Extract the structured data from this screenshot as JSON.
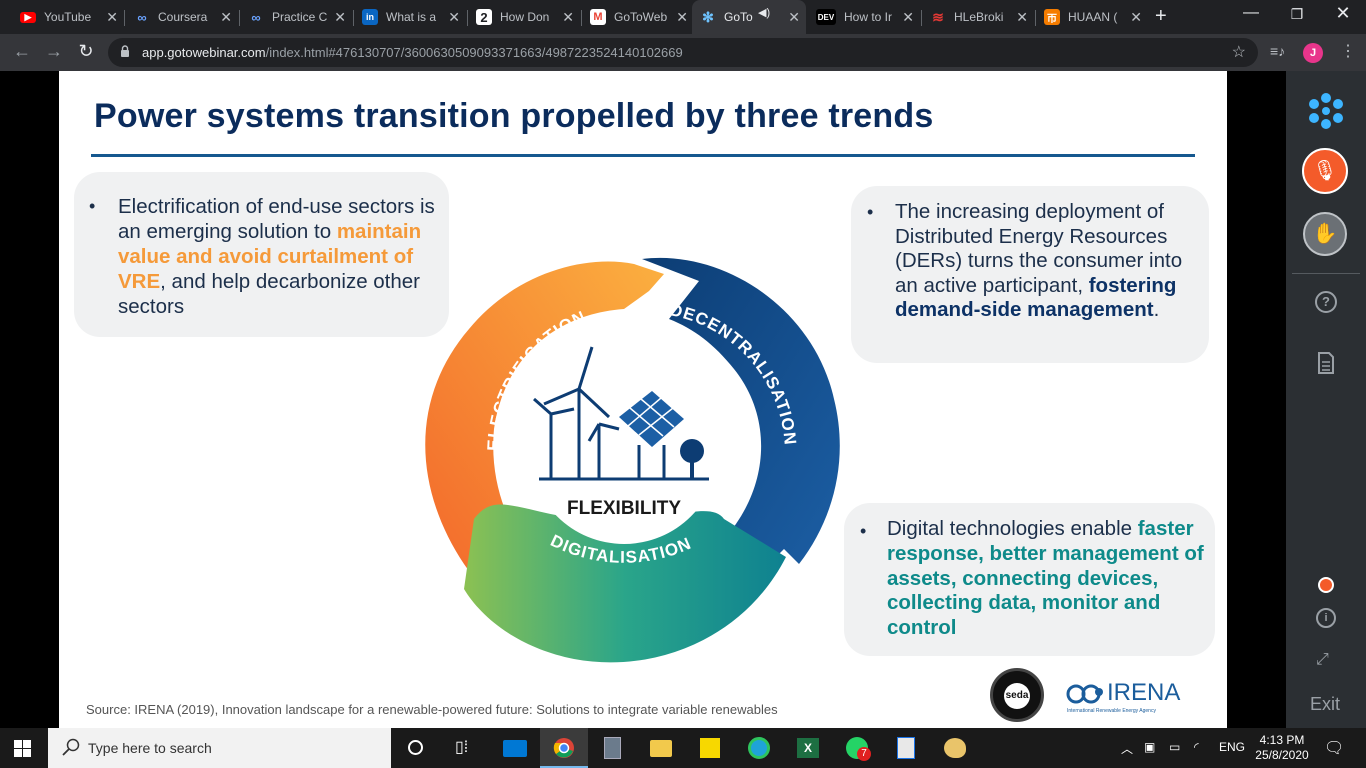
{
  "browser": {
    "tabs": [
      {
        "label": "YouTube",
        "icon": "youtube-icon",
        "color": "#ff0000"
      },
      {
        "label": "Coursera",
        "icon": "coursera-icon",
        "color": "#2a73cc"
      },
      {
        "label": "Practice C",
        "icon": "coursera-icon",
        "color": "#2a73cc"
      },
      {
        "label": "What is a",
        "icon": "linkedin-learning-icon",
        "color": "#0a66c2"
      },
      {
        "label": "How Don",
        "icon": "number-two-icon",
        "color": "#202124"
      },
      {
        "label": "GoToWeb",
        "icon": "gmail-icon",
        "color": "#ea4335"
      },
      {
        "label": "GoTo",
        "icon": "gotowebinar-icon",
        "color": "#3d8bfd"
      },
      {
        "label": "How to Ir",
        "icon": "dev-icon",
        "color": "#000000"
      },
      {
        "label": "HLeBroki",
        "icon": "hlebroking-icon",
        "color": "#d32f2f"
      },
      {
        "label": "HUAAN (",
        "icon": "huaan-icon",
        "color": "#f57c00"
      }
    ],
    "new_tab": "+",
    "url_domain": "app.gotowebinar.com",
    "url_path": "/index.html#476130707/3600630509093371663/4987223524140102669",
    "profile_initial": "J"
  },
  "slide": {
    "title": "Power systems transition propelled by three trends",
    "left_callout": {
      "pre": "Electrification of end-use sectors is an emerging solution to ",
      "highlight": "maintain value and avoid curtailment of VRE",
      "post": ", and help decarbonize other sectors"
    },
    "right_callout": {
      "pre": "The increasing deployment of Distributed Energy Resources (DERs) turns the consumer into an active participant, ",
      "highlight": "fostering demand-side management",
      "post": "."
    },
    "bottom_callout": {
      "pre": "Digital technologies enable ",
      "highlight": "faster response, better management of assets, connecting devices, collecting data, monitor and control",
      "post": ""
    },
    "cycle": {
      "center": "FLEXIBILITY",
      "segments": [
        "ELECTRIFICATION",
        "DECENTRALISATION",
        "DIGITALISATION"
      ],
      "colors": {
        "electrification": "#f68b2c",
        "decentralisation": "#0d4a8a",
        "digitalisation": "#1a9a8a"
      }
    },
    "source": "Source: IRENA (2019), Innovation landscape for a renewable-powered future: Solutions to integrate variable renewables",
    "logos": {
      "seda": "seda",
      "irena": "IRENA",
      "irena_sub": "International Renewable Energy Agency"
    }
  },
  "panel": {
    "exit": "Exit"
  },
  "taskbar": {
    "search_placeholder": "Type here to search",
    "whatsapp_badge": "7",
    "language": "ENG",
    "time": "4:13 PM",
    "date": "25/8/2020"
  }
}
